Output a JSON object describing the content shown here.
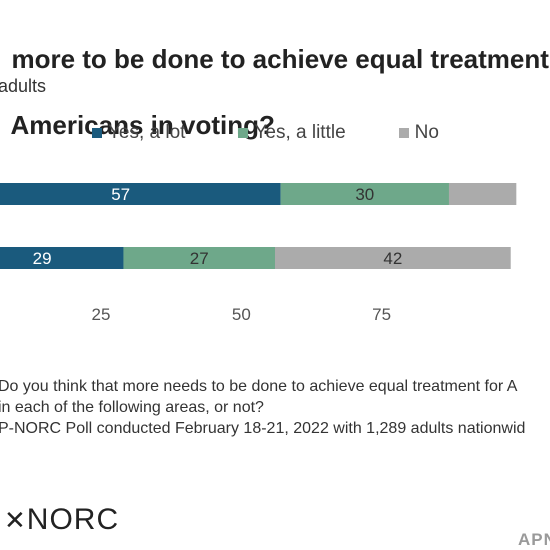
{
  "header": {
    "title_lines": [
      "more to be done to achieve equal treatment f",
      "Americans in voting?"
    ],
    "subtitle": "adults"
  },
  "colors": {
    "yes_a_lot": "#1a5a7d",
    "yes_a_little": "#6ea88a",
    "no": "#ababab"
  },
  "chart_data": {
    "type": "bar",
    "orientation": "horizontal",
    "stacked": true,
    "categories": [
      "",
      ""
    ],
    "series": [
      {
        "name": "Yes, a lot",
        "values": [
          57,
          29
        ]
      },
      {
        "name": "Yes, a little",
        "values": [
          30,
          27
        ]
      },
      {
        "name": "No",
        "values": [
          12,
          42
        ]
      }
    ],
    "data_labels": [
      [
        "57",
        "29"
      ],
      [
        "30",
        "27"
      ],
      [
        "",
        "42"
      ]
    ],
    "xlim": [
      7,
      105
    ],
    "xticks": [
      25,
      50,
      75
    ],
    "xtick_labels": [
      "25",
      "50",
      "75"
    ],
    "legend_position": "top"
  },
  "notes": [
    "Do you think that more needs to be done to achieve equal treatment for A",
    " in each of the following areas, or not?",
    "P-NORC Poll conducted February 18-21, 2022 with 1,289 adults nationwid"
  ],
  "footer": {
    "logo_mark": "✕",
    "logo_text": "NORC",
    "ap_text": "APN"
  }
}
